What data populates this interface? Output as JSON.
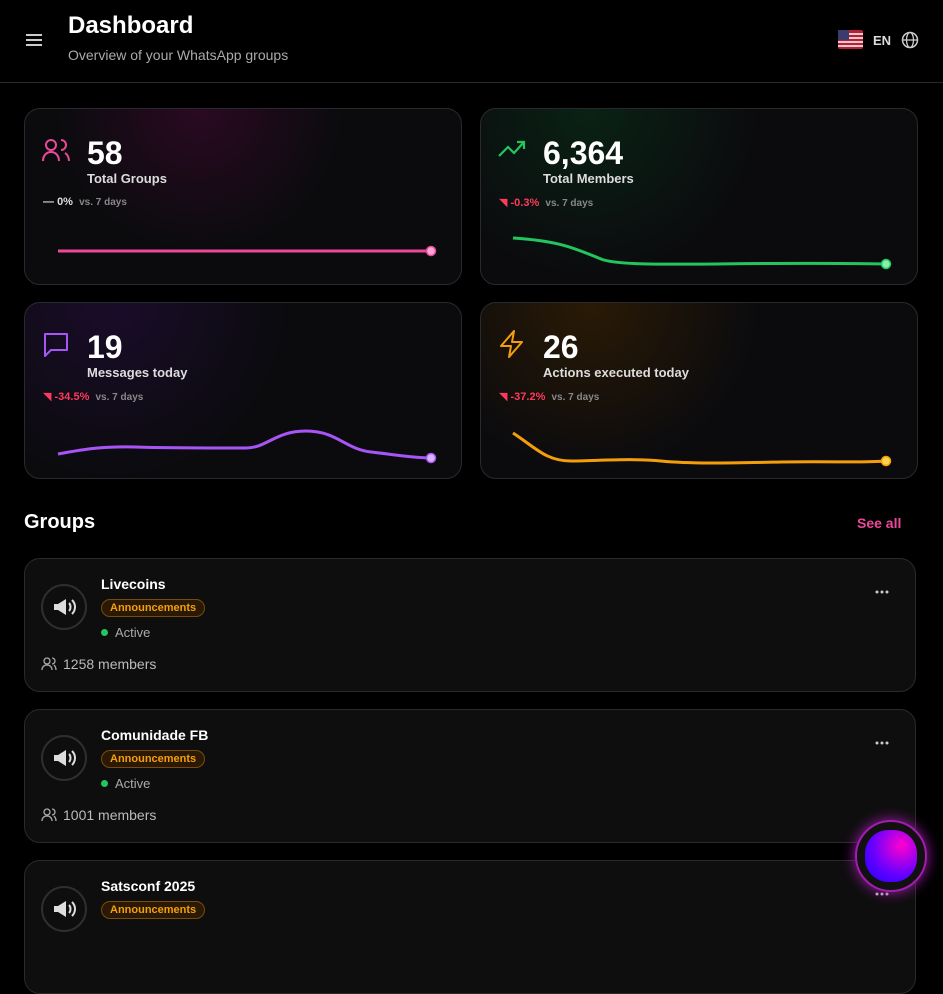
{
  "header": {
    "title": "Dashboard",
    "subtitle": "Overview of your WhatsApp groups",
    "language": "EN"
  },
  "stats": [
    {
      "value": "58",
      "label": "Total Groups",
      "change": "0%",
      "period": "vs. 7 days"
    },
    {
      "value": "6,364",
      "label": "Total Members",
      "change": "-0.3%",
      "period": "vs. 7 days"
    },
    {
      "value": "19",
      "label": "Messages today",
      "change": "-34.5%",
      "period": "vs. 7 days"
    },
    {
      "value": "26",
      "label": "Actions executed today",
      "change": "-37.2%",
      "period": "vs. 7 days"
    }
  ],
  "groups_section": {
    "title": "Groups",
    "link": "See all"
  },
  "groups": [
    {
      "name": "Livecoins",
      "tag": "Announcements",
      "status": "Active",
      "members": "1258 members"
    },
    {
      "name": "Comunidade FB",
      "tag": "Announcements",
      "status": "Active",
      "members": "1001 members"
    },
    {
      "name": "Satsconf 2025",
      "tag": "Announcements"
    }
  ]
}
